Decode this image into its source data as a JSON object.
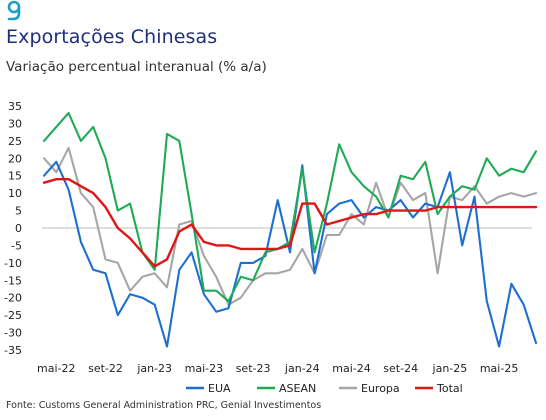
{
  "header": {
    "title": "Exportações Chinesas",
    "subtitle": "Variação percentual interanual (% a/a)",
    "source": "Fonte: Customs General Administration PRC, Genial Investimentos"
  },
  "logo": {
    "icon": "genial-g-logo-icon",
    "color": "#1aa0c8"
  },
  "chart_data": {
    "type": "line",
    "ylim": [
      -35,
      35
    ],
    "yticks": [
      35,
      30,
      25,
      20,
      15,
      10,
      5,
      0,
      -5,
      -10,
      -15,
      -20,
      -25,
      -30,
      -35
    ],
    "x": [
      "2022-04",
      "2022-05",
      "2022-06",
      "2022-07",
      "2022-08",
      "2022-09",
      "2022-10",
      "2022-11",
      "2022-12",
      "2023-01",
      "2023-02",
      "2023-03",
      "2023-04",
      "2023-05",
      "2023-06",
      "2023-07",
      "2023-08",
      "2023-09",
      "2023-10",
      "2023-11",
      "2023-12",
      "2024-01",
      "2024-02",
      "2024-03",
      "2024-04",
      "2024-05",
      "2024-06",
      "2024-07",
      "2024-08",
      "2024-09",
      "2024-10",
      "2024-11",
      "2024-12",
      "2025-01",
      "2025-02",
      "2025-03",
      "2025-04",
      "2025-05",
      "2025-06",
      "2025-07",
      "2025-08"
    ],
    "xtick_labels": [
      "mai-22",
      "set-22",
      "jan-23",
      "mai-23",
      "set-23",
      "jan-24",
      "mai-24",
      "set-24",
      "jan-25",
      "mai-25"
    ],
    "xtick_dates": [
      "2022-05",
      "2022-09",
      "2023-01",
      "2023-05",
      "2023-09",
      "2024-01",
      "2024-05",
      "2024-09",
      "2025-01",
      "2025-05"
    ],
    "grid": false,
    "legend_position": "bottom",
    "series": [
      {
        "name": "EUA",
        "color": "#1f6fd1",
        "values": [
          15,
          19,
          11,
          -4,
          -12,
          -13,
          -25,
          -19,
          -20,
          -22,
          -34,
          -12,
          -7,
          -19,
          -24,
          -23,
          -10,
          -10,
          -8,
          8,
          -7,
          18,
          -13,
          4,
          7,
          8,
          3,
          6,
          5,
          8,
          3,
          7,
          6,
          16,
          -5,
          9,
          -21,
          -34,
          -16,
          -22,
          -33
        ]
      },
      {
        "name": "ASEAN",
        "color": "#1faa55",
        "values": [
          25,
          29,
          33,
          25,
          29,
          20,
          5,
          7,
          -7,
          -12,
          27,
          25,
          4,
          -18,
          -18,
          -21,
          -14,
          -15,
          -7,
          -6,
          -4,
          17,
          -7,
          7,
          24,
          16,
          12,
          9,
          3,
          15,
          14,
          19,
          4,
          9,
          12,
          11,
          20,
          15,
          17,
          16,
          22
        ]
      },
      {
        "name": "Europa",
        "color": "#a6a6a6",
        "values": [
          20,
          16,
          23,
          10,
          6,
          -9,
          -10,
          -18,
          -14,
          -13,
          -17,
          1,
          2,
          -8,
          -14,
          -22,
          -20,
          -15,
          -13,
          -13,
          -12,
          -6,
          -13,
          -2,
          -2,
          4,
          1,
          13,
          3,
          13,
          8,
          10,
          -13,
          9,
          8,
          12,
          7,
          9,
          10,
          9,
          10
        ]
      },
      {
        "name": "Total",
        "color": "#e01515",
        "values": [
          13,
          14,
          14,
          12,
          10,
          6,
          0,
          -3,
          -7,
          -11,
          -9,
          -1,
          1,
          -4,
          -5,
          -5,
          -6,
          -6,
          -6,
          -6,
          -5,
          7,
          7,
          1,
          2,
          3,
          4,
          4,
          5,
          5,
          5,
          5,
          6,
          6,
          6,
          6,
          6,
          6,
          6,
          6,
          6
        ]
      }
    ]
  }
}
